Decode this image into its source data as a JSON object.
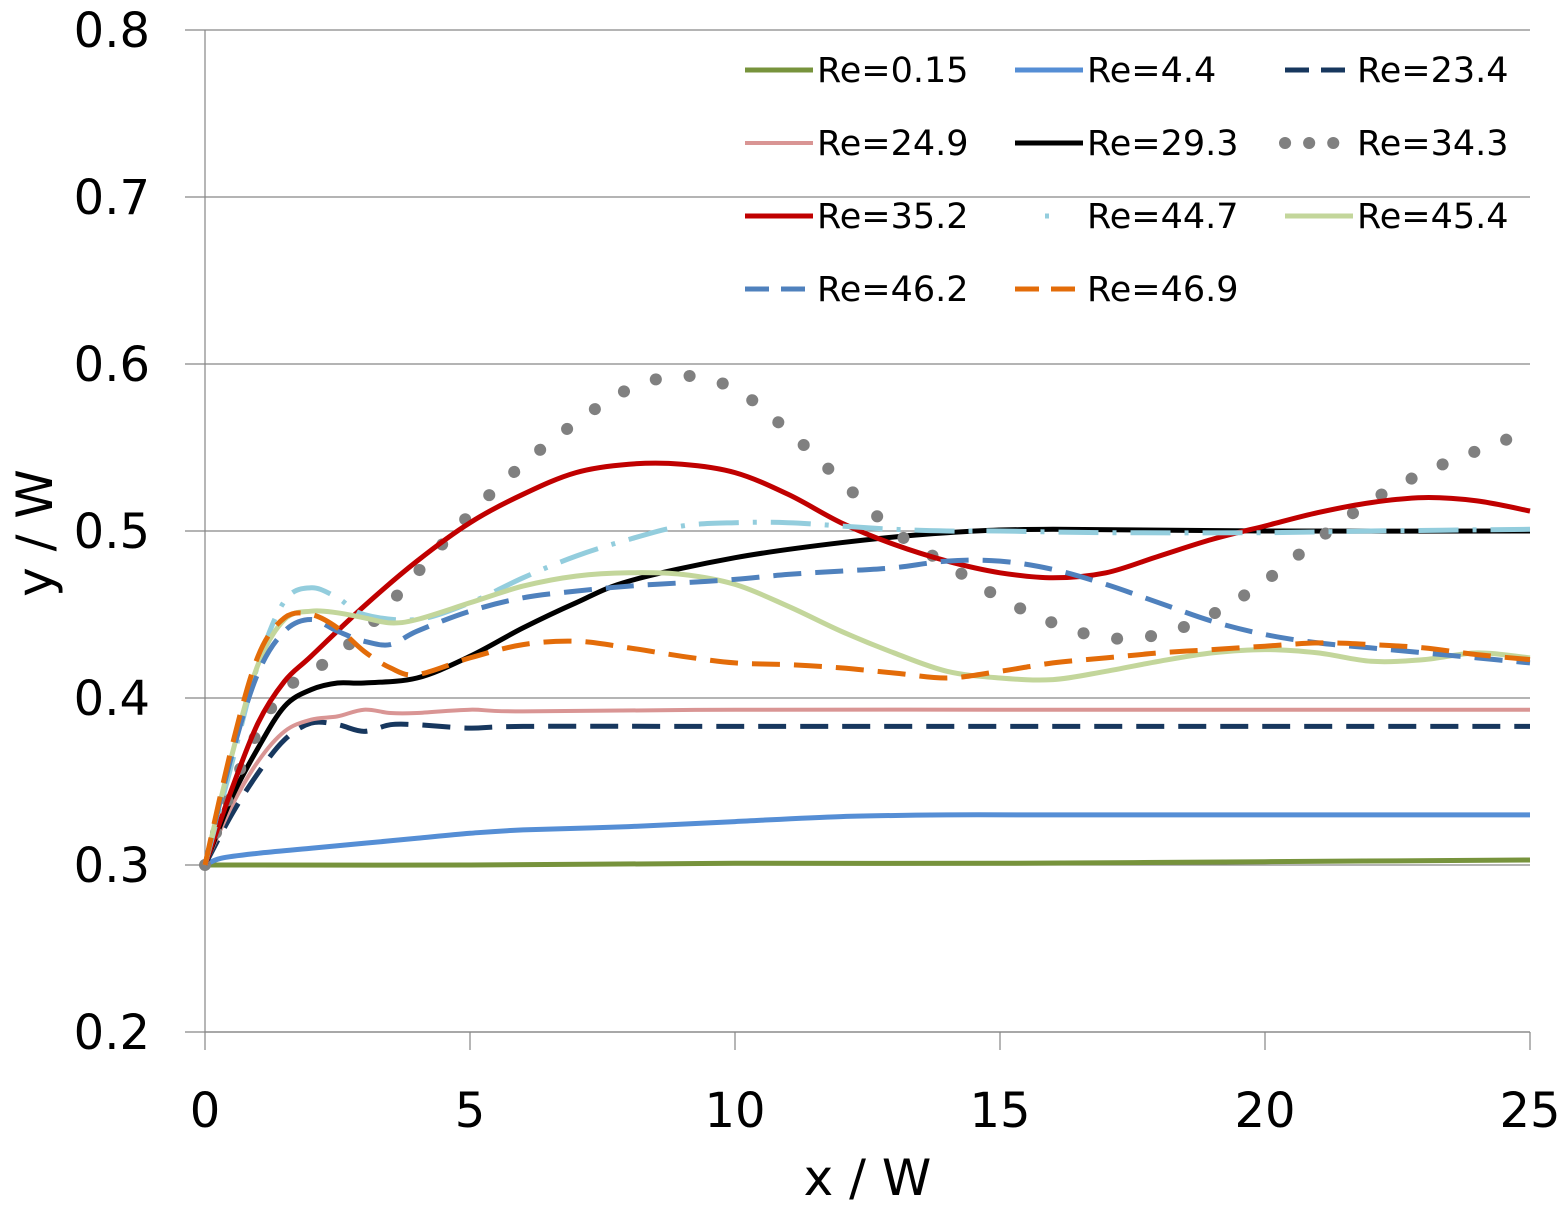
{
  "chart_data": {
    "type": "line",
    "title": "",
    "xlabel": "x / W",
    "ylabel": "y / W",
    "xlim": [
      0,
      25
    ],
    "ylim": [
      0.2,
      0.8
    ],
    "xticks": [
      "0",
      "5",
      "10",
      "15",
      "20",
      "25"
    ],
    "yticks": [
      "0.2",
      "0.3",
      "0.4",
      "0.5",
      "0.6",
      "0.7",
      "0.8"
    ],
    "grid": "horizontal",
    "legend_position": "top-right",
    "series": [
      {
        "name": "Re=0.15",
        "color": "#77933C",
        "style": "solid",
        "width": 5,
        "x": [
          0,
          5,
          10,
          15,
          20,
          25
        ],
        "y": [
          0.3,
          0.3,
          0.301,
          0.301,
          0.302,
          0.303
        ]
      },
      {
        "name": "Re=4.4",
        "color": "#558ED5",
        "style": "solid",
        "width": 5,
        "x": [
          0,
          0.3,
          1,
          2,
          3,
          4,
          5,
          6,
          8,
          10,
          12,
          14,
          16,
          20,
          25
        ],
        "y": [
          0.3,
          0.304,
          0.307,
          0.31,
          0.313,
          0.316,
          0.319,
          0.321,
          0.323,
          0.326,
          0.329,
          0.33,
          0.33,
          0.33,
          0.33
        ]
      },
      {
        "name": "Re=23.4",
        "color": "#17375E",
        "style": "dash",
        "width": 5,
        "x": [
          0,
          0.5,
          1,
          1.5,
          2,
          2.5,
          3,
          3.5,
          4,
          5,
          6,
          10,
          15,
          20,
          25
        ],
        "y": [
          0.3,
          0.33,
          0.355,
          0.375,
          0.385,
          0.384,
          0.38,
          0.384,
          0.384,
          0.382,
          0.383,
          0.383,
          0.383,
          0.383,
          0.383
        ]
      },
      {
        "name": "Re=24.9",
        "color": "#D99594",
        "style": "solid",
        "width": 4,
        "x": [
          0,
          0.5,
          1,
          1.5,
          2,
          2.5,
          3,
          3.5,
          4,
          5,
          6,
          10,
          15,
          20,
          25
        ],
        "y": [
          0.3,
          0.335,
          0.362,
          0.38,
          0.387,
          0.389,
          0.393,
          0.391,
          0.391,
          0.393,
          0.392,
          0.393,
          0.393,
          0.393,
          0.393
        ]
      },
      {
        "name": "Re=29.3",
        "color": "#000000",
        "style": "solid",
        "width": 5,
        "x": [
          0,
          0.5,
          1,
          1.5,
          2,
          2.5,
          3,
          4,
          5,
          6,
          7,
          8,
          10,
          12,
          14,
          16,
          20,
          25
        ],
        "y": [
          0.3,
          0.34,
          0.37,
          0.395,
          0.405,
          0.409,
          0.409,
          0.412,
          0.425,
          0.442,
          0.457,
          0.47,
          0.484,
          0.493,
          0.499,
          0.501,
          0.5,
          0.5
        ]
      },
      {
        "name": "Re=34.3",
        "color": "#808080",
        "style": "dot",
        "width": 12,
        "x": [
          0,
          0.5,
          1,
          1.5,
          2,
          3,
          4,
          5,
          6,
          7,
          8,
          9,
          10,
          11,
          12,
          13,
          14,
          15,
          16,
          17,
          18,
          19,
          20,
          21,
          22,
          23,
          24,
          25
        ],
        "y": [
          0.3,
          0.345,
          0.38,
          0.405,
          0.415,
          0.44,
          0.475,
          0.51,
          0.54,
          0.565,
          0.585,
          0.593,
          0.585,
          0.56,
          0.53,
          0.5,
          0.48,
          0.46,
          0.445,
          0.436,
          0.438,
          0.45,
          0.47,
          0.495,
          0.518,
          0.535,
          0.548,
          0.56
        ]
      },
      {
        "name": "Re=35.2",
        "color": "#C00000",
        "style": "solid",
        "width": 5,
        "x": [
          0,
          0.5,
          1,
          1.5,
          2,
          3,
          4,
          5,
          6,
          7,
          8,
          9,
          10,
          11,
          12,
          13,
          14,
          15,
          16,
          17,
          18,
          19,
          20,
          21,
          22,
          23,
          24,
          25
        ],
        "y": [
          0.3,
          0.345,
          0.385,
          0.41,
          0.425,
          0.455,
          0.482,
          0.505,
          0.522,
          0.535,
          0.54,
          0.54,
          0.535,
          0.522,
          0.505,
          0.492,
          0.482,
          0.475,
          0.472,
          0.475,
          0.485,
          0.495,
          0.503,
          0.511,
          0.517,
          0.52,
          0.518,
          0.512
        ]
      },
      {
        "name": "Re=44.7",
        "color": "#93CDDD",
        "style": "dashdot",
        "width": 5,
        "x": [
          0,
          0.5,
          1,
          1.5,
          2,
          2.5,
          3,
          4,
          5,
          6,
          7,
          8,
          9,
          10,
          11,
          12,
          13,
          14,
          15,
          17,
          20,
          22,
          25
        ],
        "y": [
          0.3,
          0.36,
          0.42,
          0.458,
          0.466,
          0.46,
          0.45,
          0.447,
          0.457,
          0.472,
          0.485,
          0.495,
          0.503,
          0.505,
          0.505,
          0.503,
          0.501,
          0.5,
          0.5,
          0.499,
          0.499,
          0.5,
          0.501
        ]
      },
      {
        "name": "Re=45.4",
        "color": "#C3D69B",
        "style": "solid",
        "width": 5,
        "x": [
          0,
          0.5,
          1,
          1.5,
          2,
          2.5,
          3,
          3.5,
          4,
          5,
          6,
          7,
          8,
          9,
          10,
          11,
          12,
          13,
          14,
          15,
          16,
          17,
          18,
          19,
          20,
          21,
          22,
          23,
          24,
          25
        ],
        "y": [
          0.3,
          0.365,
          0.42,
          0.447,
          0.452,
          0.451,
          0.448,
          0.445,
          0.447,
          0.457,
          0.467,
          0.473,
          0.475,
          0.474,
          0.468,
          0.455,
          0.44,
          0.427,
          0.416,
          0.412,
          0.411,
          0.416,
          0.422,
          0.427,
          0.429,
          0.427,
          0.422,
          0.423,
          0.427,
          0.424
        ]
      },
      {
        "name": "Re=46.2",
        "color": "#4F81BD",
        "style": "dash",
        "width": 5,
        "x": [
          0,
          0.5,
          1,
          1.5,
          2,
          2.5,
          3,
          3.5,
          4,
          5,
          6,
          7,
          8,
          9,
          10,
          11,
          12,
          13,
          14,
          15,
          16,
          17,
          18,
          19,
          20,
          21,
          22,
          23,
          24,
          25
        ],
        "y": [
          0.3,
          0.365,
          0.415,
          0.44,
          0.447,
          0.44,
          0.434,
          0.432,
          0.44,
          0.452,
          0.46,
          0.464,
          0.467,
          0.469,
          0.471,
          0.474,
          0.476,
          0.478,
          0.482,
          0.482,
          0.477,
          0.468,
          0.457,
          0.446,
          0.438,
          0.433,
          0.43,
          0.427,
          0.424,
          0.421
        ]
      },
      {
        "name": "Re=46.9",
        "color": "#E36C09",
        "style": "dash",
        "width": 5,
        "x": [
          0,
          0.5,
          1,
          1.5,
          2,
          2.5,
          3,
          3.5,
          4,
          5,
          6,
          7,
          8,
          9,
          10,
          11,
          12,
          13,
          14,
          15,
          16,
          17,
          18,
          19,
          20,
          21,
          22,
          23,
          24,
          25
        ],
        "y": [
          0.3,
          0.37,
          0.425,
          0.448,
          0.45,
          0.442,
          0.428,
          0.418,
          0.414,
          0.424,
          0.432,
          0.434,
          0.43,
          0.425,
          0.421,
          0.42,
          0.418,
          0.415,
          0.412,
          0.416,
          0.421,
          0.424,
          0.427,
          0.429,
          0.431,
          0.433,
          0.432,
          0.43,
          0.426,
          0.423
        ]
      }
    ]
  }
}
